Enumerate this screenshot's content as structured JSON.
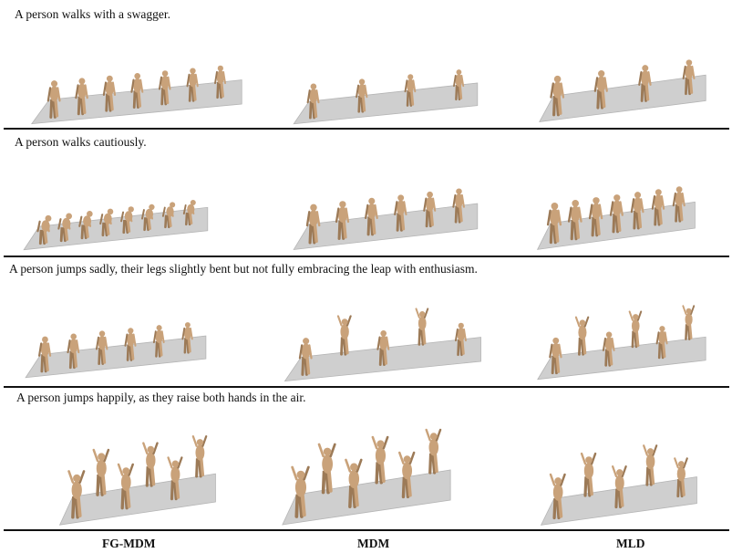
{
  "rows": [
    {
      "caption": "A person walks with a swagger.",
      "panels": [
        {
          "method": "FG-MDM",
          "figures": 7,
          "pose": "walk"
        },
        {
          "method": "MDM",
          "figures": 4,
          "pose": "walk"
        },
        {
          "method": "MLD",
          "figures": 4,
          "pose": "walk"
        }
      ]
    },
    {
      "caption": "A person walks cautiously.",
      "panels": [
        {
          "method": "FG-MDM",
          "figures": 8,
          "pose": "crouch"
        },
        {
          "method": "MDM",
          "figures": 6,
          "pose": "walk"
        },
        {
          "method": "MLD",
          "figures": 7,
          "pose": "walk"
        }
      ]
    },
    {
      "caption": "A person jumps sadly, their legs slightly bent but not fully embracing the leap with enthusiasm.",
      "panels": [
        {
          "method": "FG-MDM",
          "figures": 6,
          "pose": "stand"
        },
        {
          "method": "MDM",
          "figures": 5,
          "pose": "jump"
        },
        {
          "method": "MLD",
          "figures": 6,
          "pose": "jump"
        }
      ]
    },
    {
      "caption": "A person jumps happily, as they raise both hands in the air.",
      "panels": [
        {
          "method": "FG-MDM",
          "figures": 6,
          "pose": "jump"
        },
        {
          "method": "MDM",
          "figures": 6,
          "pose": "jump"
        },
        {
          "method": "MLD",
          "figures": 5,
          "pose": "jump"
        }
      ]
    }
  ],
  "columns": [
    "FG-MDM",
    "MDM",
    "MLD"
  ],
  "colors": {
    "figure": "#c9a27a",
    "figure_shade": "#9c7a57",
    "floor": "#cfcfcf",
    "floor_edge": "#b5b5b5"
  }
}
